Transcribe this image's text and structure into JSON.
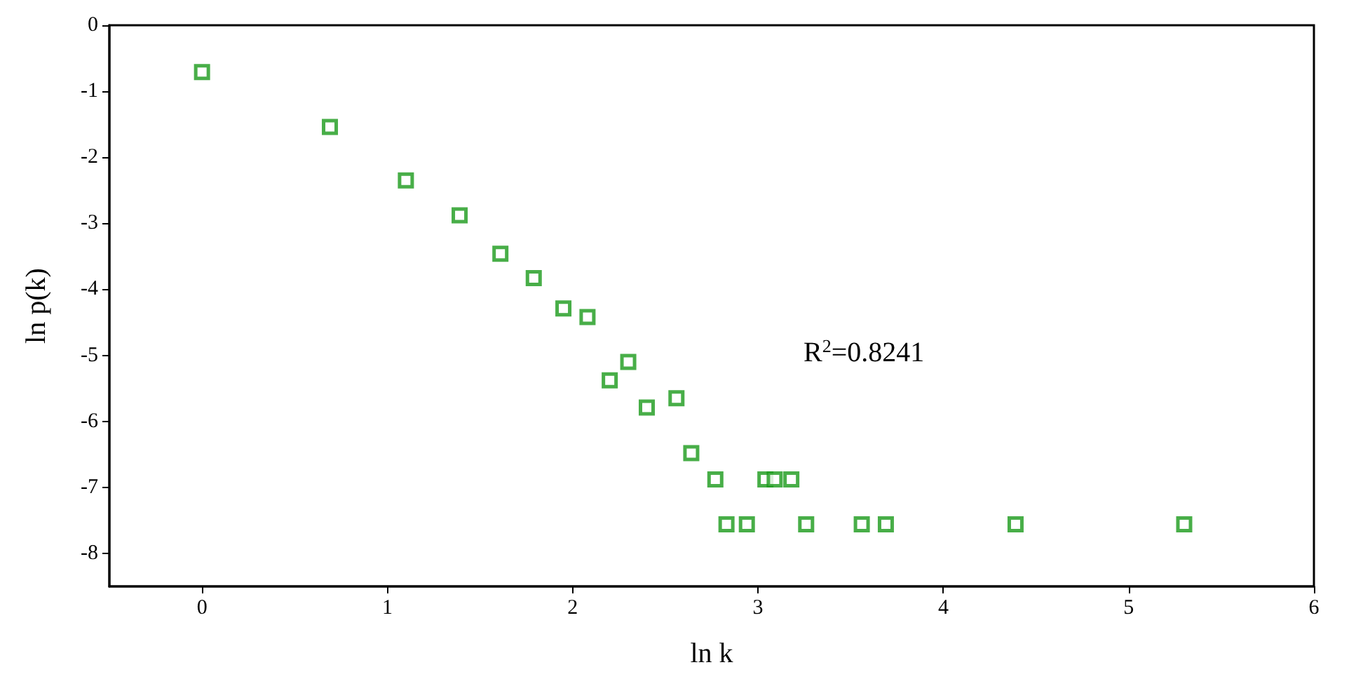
{
  "chart_data": {
    "type": "scatter",
    "xlabel": "ln k",
    "ylabel": "ln p(k)",
    "x": [
      0,
      0.69,
      1.1,
      1.39,
      1.61,
      1.79,
      1.95,
      2.08,
      2.2,
      2.3,
      2.4,
      2.56,
      2.64,
      2.77,
      2.83,
      2.94,
      3.04,
      3.09,
      3.18,
      3.26,
      3.56,
      3.69,
      4.39,
      5.3
    ],
    "values": [
      -0.71,
      -1.54,
      -2.35,
      -2.88,
      -3.46,
      -3.83,
      -4.29,
      -4.42,
      -5.38,
      -5.1,
      -5.79,
      -5.65,
      -6.48,
      -6.88,
      -7.56,
      -7.56,
      -6.88,
      -6.88,
      -6.88,
      -7.56,
      -7.56,
      -7.56,
      -7.56,
      -7.56
    ],
    "color": "#1a9a1a",
    "marker": "square",
    "grid": false,
    "xlim": [
      -0.5,
      6
    ],
    "xticks": [
      0,
      1,
      2,
      3,
      4,
      5,
      6
    ],
    "ylim": [
      -8.5,
      0
    ],
    "yticks": [
      0,
      -1,
      -2,
      -3,
      -4,
      -5,
      -6,
      -7,
      -8
    ],
    "annotations": [
      "R$^{2}$=0.8241"
    ]
  }
}
